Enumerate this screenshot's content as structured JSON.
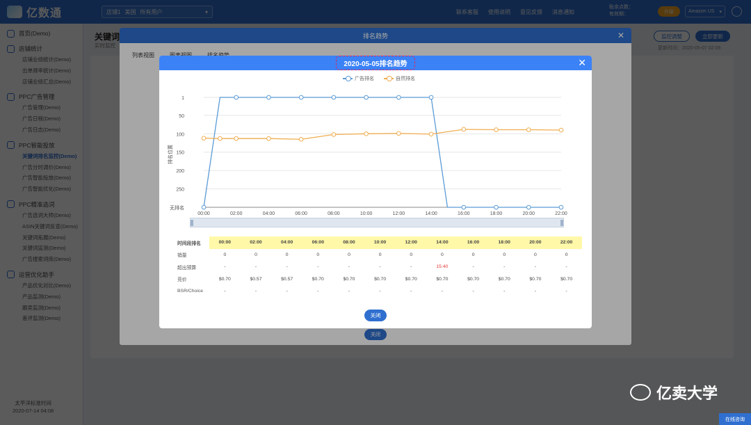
{
  "topbar": {
    "logo": "亿数通",
    "store_label": "店铺1",
    "store_country": "美国",
    "store_users": "所有用户",
    "links": [
      "联系客服",
      "使用说明",
      "意见反馈",
      "消息通知"
    ],
    "balance1_label": "账余点数：",
    "balance2_label": "有效期：",
    "upgrade": "升级",
    "market": "Amazon US",
    "settings_icon": "gear-icon"
  },
  "sidebar": {
    "groups": [
      {
        "title": "首页(Demo)",
        "icon": "home-icon",
        "items": []
      },
      {
        "title": "店铺统计",
        "icon": "chart-icon",
        "items": [
          "店铺业绩统计(Demo)",
          "出单频率统计(Demo)",
          "店铺业绩汇总(Demo)"
        ]
      },
      {
        "title": "PPC广告管理",
        "icon": "ad-icon",
        "items": [
          "广告管理(Demo)",
          "广告日程(Demo)",
          "广告日志(Demo)"
        ]
      },
      {
        "title": "PPC智能投放",
        "icon": "ai-icon",
        "items": [
          "关键词排名监控(Demo)",
          "广告分时调价(Demo)",
          "广告智能投放(Demo)",
          "广告智能优化(Demo)"
        ]
      },
      {
        "title": "PPC精准选词",
        "icon": "target-icon",
        "items": [
          "广告选词大师(Demo)",
          "ASIN关键词反查(Demo)",
          "关键词拓展(Demo)",
          "关键词监测(Demo)",
          "广告搜索词库(Demo)"
        ]
      },
      {
        "title": "运营优化助手",
        "icon": "assistant-icon",
        "items": [
          "产品优化对比(Demo)",
          "产品监测(Demo)",
          "跟卖监测(Demo)",
          "差评监测(Demo)"
        ]
      }
    ],
    "active_item": "关键词排名监控(Demo)",
    "timezone": "太平洋标准时间",
    "datetime": "2020-07-14 04:08"
  },
  "background": {
    "title": "关键词",
    "subtitle": "实时监控",
    "btn_monitor": "监控调整",
    "btn_update": "立即更新",
    "update_time": "更新时间：2020-05-07 02:09"
  },
  "modal1": {
    "title": "排名趋势",
    "tabs": [
      "列表视图",
      "图表视图",
      "排名趋势"
    ],
    "close_label": "关闭"
  },
  "modal2": {
    "title": "2020-05-05排名趋势",
    "close_label": "关闭",
    "legend": [
      "广告排名",
      "自然排名"
    ],
    "y_axis_label": "排名位置",
    "table": {
      "header_label": "时间段排名",
      "rows": [
        {
          "label": "销量",
          "values": [
            "0",
            "0",
            "0",
            "0",
            "0",
            "0",
            "0",
            "0",
            "0",
            "0",
            "0",
            "0"
          ]
        },
        {
          "label": "超出预算",
          "values": [
            "-",
            "-",
            "-",
            "-",
            "-",
            "-",
            "-",
            "15:40",
            "-",
            "-",
            "-",
            "-"
          ]
        },
        {
          "label": "竞价",
          "values": [
            "$0.70",
            "$0.57",
            "$0.57",
            "$0.70",
            "$0.70",
            "$0.70",
            "$0.70",
            "$0.70",
            "$0.70",
            "$0.70",
            "$0.70",
            "$0.70"
          ]
        },
        {
          "label": "BSR/Choice",
          "values": [
            "-",
            "-",
            "-",
            "-",
            "-",
            "-",
            "-",
            "-",
            "-",
            "-",
            "-",
            "-"
          ]
        }
      ]
    }
  },
  "chart_data": {
    "type": "line",
    "x": [
      "00:00",
      "01:00",
      "02:00",
      "03:00",
      "04:00",
      "05:00",
      "06:00",
      "07:00",
      "08:00",
      "09:00",
      "10:00",
      "11:00",
      "12:00",
      "13:00",
      "14:00",
      "15:00",
      "16:00",
      "17:00",
      "18:00",
      "19:00",
      "20:00",
      "21:00",
      "22:00"
    ],
    "xticks": [
      "00:00",
      "02:00",
      "04:00",
      "06:00",
      "08:00",
      "10:00",
      "12:00",
      "14:00",
      "16:00",
      "18:00",
      "20:00",
      "22:00"
    ],
    "yticks": [
      "1",
      "50",
      "100",
      "150",
      "200",
      "250",
      "无排名"
    ],
    "yrange": [
      1,
      300
    ],
    "y_reversed": true,
    "no_rank_value": 300,
    "series": [
      {
        "name": "广告排名",
        "color": "#5b9bd5",
        "values": [
          300,
          1,
          1,
          1,
          1,
          1,
          1,
          1,
          1,
          1,
          1,
          1,
          1,
          1,
          1,
          300,
          300,
          300,
          300,
          300,
          300,
          300,
          300
        ]
      },
      {
        "name": "自然排名",
        "color": "#f0ad4e",
        "values": [
          112,
          113,
          113,
          null,
          113,
          null,
          115,
          null,
          102,
          null,
          100,
          null,
          99,
          null,
          101,
          null,
          88,
          null,
          89,
          null,
          89,
          null,
          90
        ]
      }
    ],
    "grid": true,
    "legend_position": "top-center"
  },
  "watermark": "亿卖大学",
  "chat_btn": "在线咨询"
}
